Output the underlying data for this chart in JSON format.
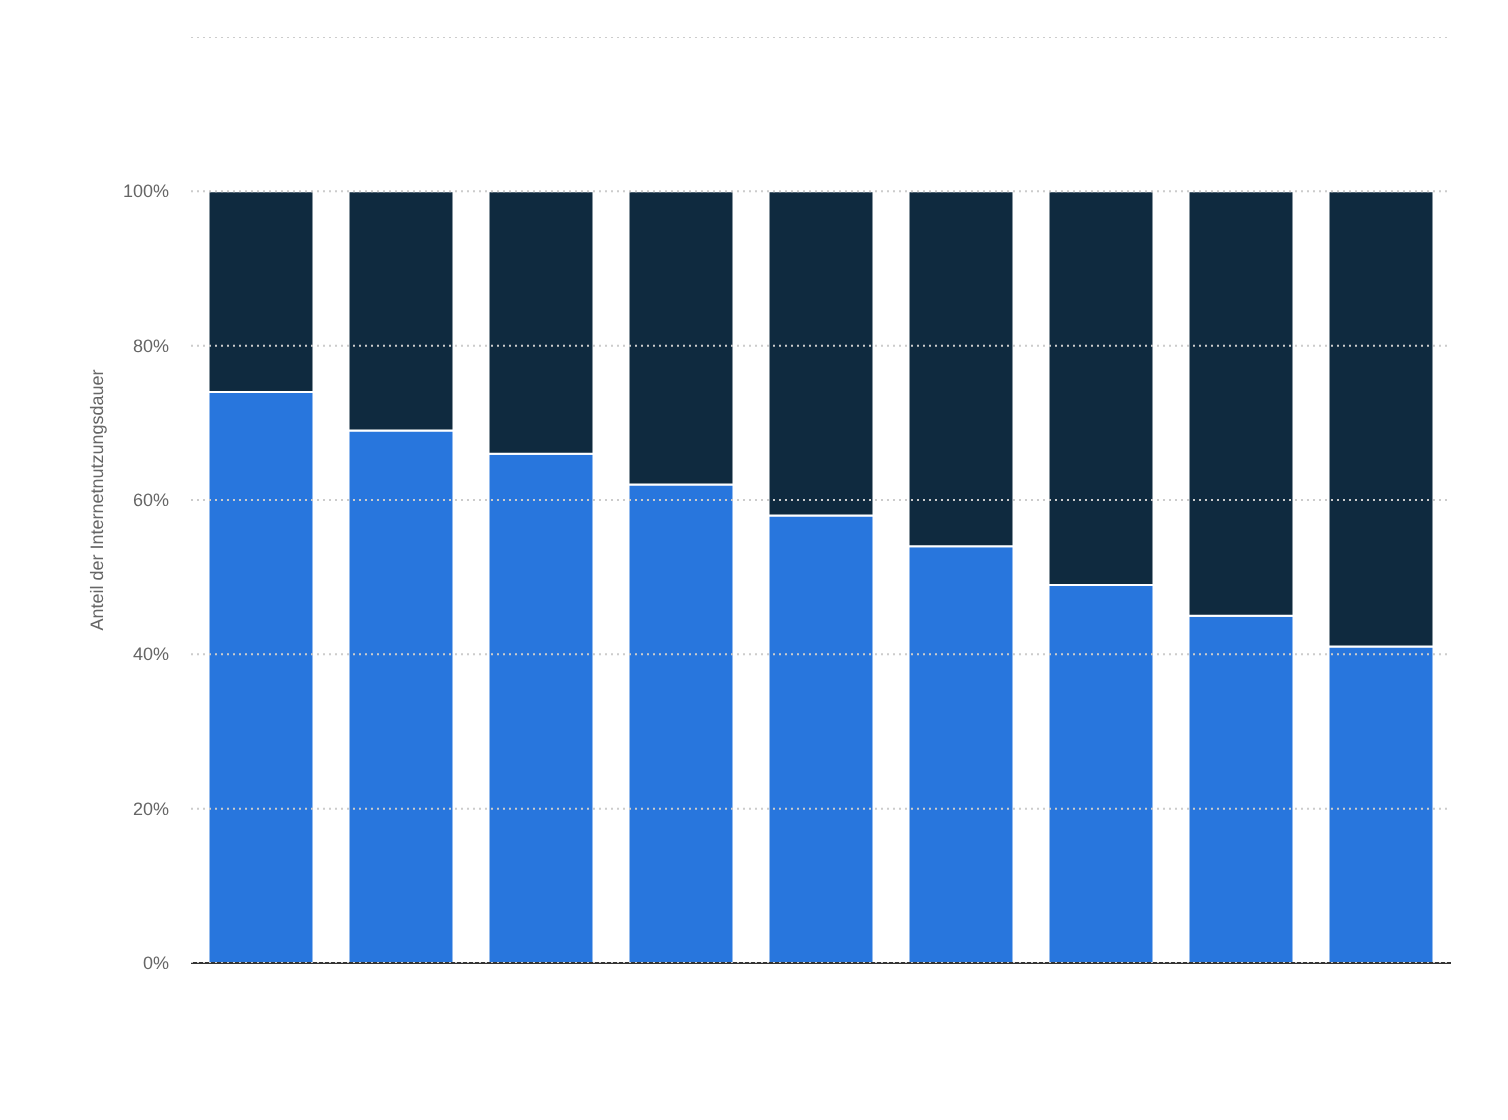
{
  "chart_data": {
    "type": "bar",
    "stacked": true,
    "ylabel": "Anteil der Internetnutzungsdauer",
    "categories": [
      null,
      null,
      null,
      null,
      null,
      null,
      null,
      null,
      null
    ],
    "series": [
      {
        "color": "#2876dd",
        "values": [
          74,
          69,
          66,
          62,
          58,
          54,
          49,
          45,
          41
        ]
      },
      {
        "color": "#0f2a3f",
        "values": [
          26,
          31,
          34,
          38,
          42,
          46,
          51,
          55,
          59
        ]
      }
    ],
    "ylim": [
      0,
      120
    ],
    "yticks": [
      {
        "value": 0,
        "label": "0%"
      },
      {
        "value": 20,
        "label": "20%"
      },
      {
        "value": 40,
        "label": "40%"
      },
      {
        "value": 60,
        "label": "60%"
      },
      {
        "value": 80,
        "label": "80%"
      },
      {
        "value": 100,
        "label": "100%"
      },
      {
        "value": 120,
        "label": null
      }
    ],
    "grid": "y",
    "tick_labels": "y"
  }
}
